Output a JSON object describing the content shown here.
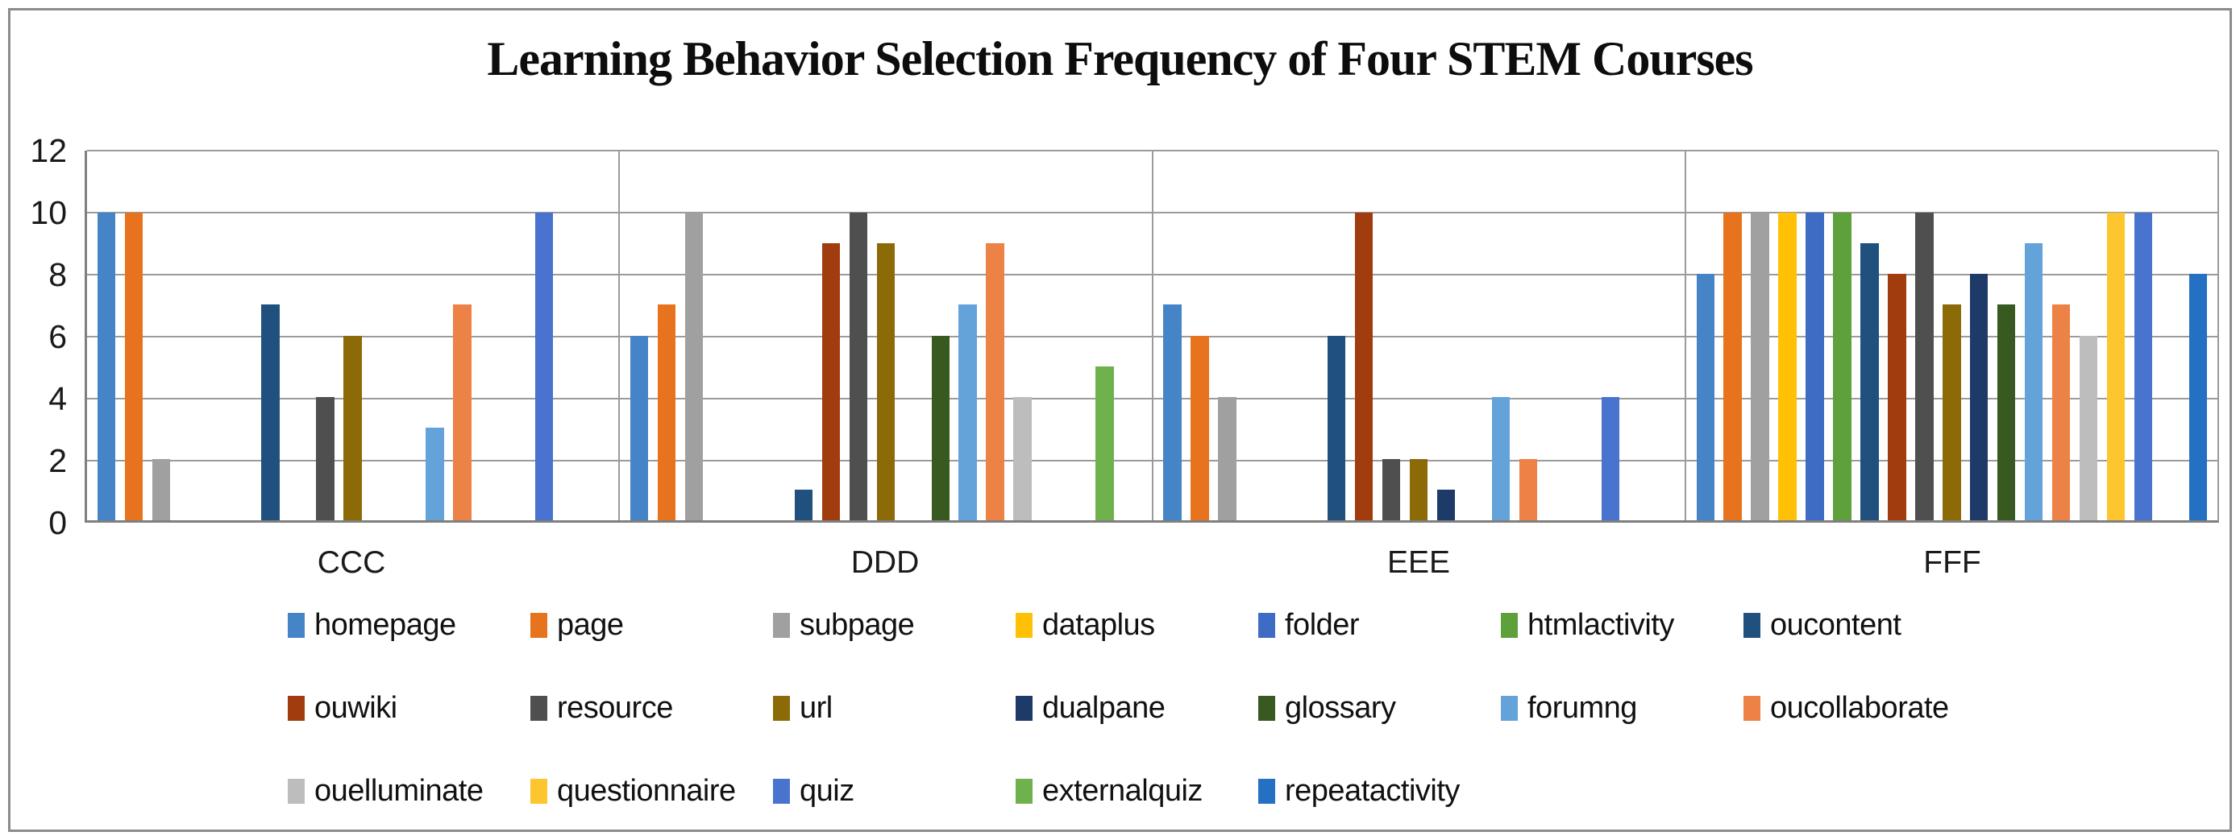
{
  "chart_data": {
    "type": "bar",
    "title": "Learning Behavior Selection Frequency of Four STEM Courses",
    "categories": [
      "CCC",
      "DDD",
      "EEE",
      "FFF"
    ],
    "y_ticks": [
      0,
      2,
      4,
      6,
      8,
      10,
      12
    ],
    "ylim": [
      0,
      12
    ],
    "grid": true,
    "legend_position": "bottom",
    "series": [
      {
        "name": "homepage",
        "color": "#4584C6",
        "values": [
          10,
          6,
          7,
          8
        ]
      },
      {
        "name": "page",
        "color": "#E8731E",
        "values": [
          10,
          7,
          6,
          10
        ]
      },
      {
        "name": "subpage",
        "color": "#A0A0A0",
        "values": [
          2,
          10,
          4,
          10
        ]
      },
      {
        "name": "dataplus",
        "color": "#FFC005",
        "values": [
          0,
          0,
          0,
          10
        ]
      },
      {
        "name": "folder",
        "color": "#3E6BC4",
        "values": [
          0,
          0,
          0,
          10
        ]
      },
      {
        "name": "htmlactivity",
        "color": "#5EA13A",
        "values": [
          0,
          0,
          0,
          10
        ]
      },
      {
        "name": "oucontent",
        "color": "#20507E",
        "values": [
          7,
          1,
          6,
          9
        ]
      },
      {
        "name": "ouwiki",
        "color": "#A03C0D",
        "values": [
          0,
          9,
          10,
          8
        ]
      },
      {
        "name": "resource",
        "color": "#4F4F4F",
        "values": [
          4,
          10,
          2,
          10
        ]
      },
      {
        "name": "url",
        "color": "#8C6A08",
        "values": [
          6,
          9,
          2,
          7
        ]
      },
      {
        "name": "dualpane",
        "color": "#1E3A68",
        "values": [
          0,
          0,
          1,
          8
        ]
      },
      {
        "name": "glossary",
        "color": "#38591F",
        "values": [
          0,
          6,
          0,
          7
        ]
      },
      {
        "name": "forumng",
        "color": "#64A2DA",
        "values": [
          3,
          7,
          4,
          9
        ]
      },
      {
        "name": "oucollaborate",
        "color": "#ED8246",
        "values": [
          7,
          9,
          2,
          7
        ]
      },
      {
        "name": "ouelluminate",
        "color": "#BDBDBD",
        "values": [
          0,
          4,
          0,
          6
        ]
      },
      {
        "name": "questionnaire",
        "color": "#FDC62E",
        "values": [
          0,
          0,
          0,
          10
        ]
      },
      {
        "name": "quiz",
        "color": "#4873CE",
        "values": [
          10,
          0,
          4,
          10
        ]
      },
      {
        "name": "externalquiz",
        "color": "#6FB24D",
        "values": [
          0,
          5,
          0,
          0
        ]
      },
      {
        "name": "repeatactivity",
        "color": "#2470C2",
        "values": [
          0,
          0,
          0,
          8
        ]
      }
    ]
  }
}
